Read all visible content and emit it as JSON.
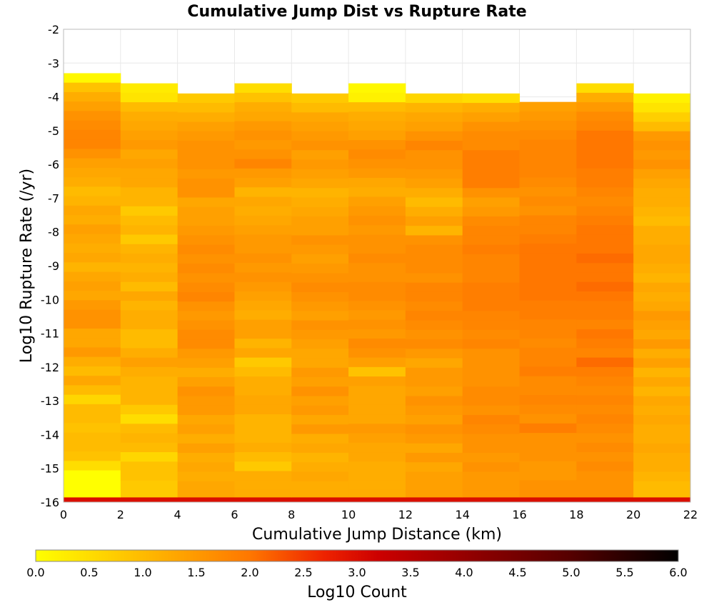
{
  "chart_data": {
    "type": "heatmap",
    "title": "Cumulative Jump Dist vs Rupture Rate",
    "xlabel": "Cumulative Jump Distance (km)",
    "ylabel": "Log10 Rupture Rate (/yr)",
    "xlim": [
      0,
      22
    ],
    "ylim": [
      -16,
      -2
    ],
    "x_ticks": [
      "0",
      "2",
      "4",
      "6",
      "8",
      "10",
      "12",
      "14",
      "16",
      "18",
      "20",
      "22"
    ],
    "y_ticks": [
      "-2",
      "-3",
      "-4",
      "-5",
      "-6",
      "-7",
      "-8",
      "-9",
      "-10",
      "-11",
      "-12",
      "-13",
      "-14",
      "-15",
      "-16"
    ],
    "x_bin_width": 2,
    "y_bin_height": 0.28,
    "columns": [
      {
        "x_start": 0,
        "y_top": -3.3,
        "bottom_row_value": 3.0,
        "values": [
          0.1,
          0.9,
          1.2,
          1.4,
          1.6,
          1.7,
          1.8,
          1.8,
          1.6,
          1.4,
          1.3,
          1.2,
          1.0,
          1.1,
          1.3,
          1.2,
          1.4,
          1.3,
          1.2,
          1.3,
          1.1,
          1.3,
          1.4,
          1.3,
          1.5,
          1.6,
          1.6,
          1.3,
          1.3,
          1.5,
          1.2,
          1.0,
          1.3,
          1.0,
          0.6,
          1.0,
          1.0,
          0.9,
          1.0,
          1.0,
          0.9,
          0.5,
          0.0
        ]
      },
      {
        "x_start": 2,
        "y_top": -3.6,
        "bottom_row_value": 3.0,
        "values": [
          0.3,
          0.4,
          1.0,
          1.2,
          1.3,
          1.4,
          1.5,
          1.3,
          1.4,
          1.3,
          1.3,
          1.1,
          1.1,
          0.8,
          1.0,
          1.1,
          0.8,
          1.1,
          1.2,
          1.1,
          1.2,
          1.0,
          1.3,
          1.1,
          1.2,
          1.2,
          1.0,
          1.0,
          1.2,
          1.4,
          1.2,
          1.1,
          1.1,
          1.1,
          0.8,
          0.5,
          1.0,
          1.1,
          1.0,
          0.6,
          0.9,
          0.9,
          0.8
        ]
      },
      {
        "x_start": 4,
        "y_top": -3.9,
        "bottom_row_value": 3.0,
        "values": [
          0.8,
          1.0,
          1.2,
          1.4,
          1.5,
          1.6,
          1.6,
          1.6,
          1.5,
          1.6,
          1.6,
          1.3,
          1.4,
          1.4,
          1.5,
          1.6,
          1.7,
          1.6,
          1.7,
          1.6,
          1.7,
          1.8,
          1.6,
          1.5,
          1.6,
          1.7,
          1.7,
          1.5,
          1.4,
          1.2,
          1.4,
          1.6,
          1.5,
          1.5,
          1.3,
          1.4,
          1.2,
          1.4,
          1.2,
          1.3,
          1.2,
          1.3
        ]
      },
      {
        "x_start": 6,
        "y_top": -3.6,
        "bottom_row_value": 3.0,
        "values": [
          0.5,
          0.9,
          1.2,
          1.3,
          1.5,
          1.6,
          1.5,
          1.6,
          1.8,
          1.5,
          1.4,
          1.1,
          1.3,
          1.2,
          1.3,
          1.4,
          1.5,
          1.5,
          1.6,
          1.5,
          1.6,
          1.5,
          1.4,
          1.3,
          1.2,
          1.4,
          1.4,
          1.1,
          1.3,
          0.8,
          1.0,
          1.2,
          1.2,
          1.3,
          1.3,
          1.1,
          1.1,
          1.1,
          1.2,
          1.0,
          0.8,
          1.2,
          1.2
        ]
      },
      {
        "x_start": 8,
        "y_top": -3.9,
        "bottom_row_value": 3.0,
        "values": [
          0.8,
          1.0,
          1.3,
          1.4,
          1.5,
          1.6,
          1.4,
          1.5,
          1.4,
          1.3,
          1.1,
          1.2,
          1.3,
          1.4,
          1.4,
          1.6,
          1.5,
          1.4,
          1.5,
          1.6,
          1.7,
          1.6,
          1.5,
          1.4,
          1.6,
          1.5,
          1.4,
          1.3,
          1.3,
          1.5,
          1.4,
          1.6,
          1.4,
          1.5,
          1.3,
          1.5,
          1.2,
          1.3,
          1.1,
          1.2,
          1.3,
          1.2
        ]
      },
      {
        "x_start": 10,
        "y_top": -3.6,
        "bottom_row_value": 3.0,
        "values": [
          0.1,
          0.2,
          1.0,
          1.2,
          1.3,
          1.4,
          1.6,
          1.7,
          1.6,
          1.5,
          1.3,
          1.2,
          1.4,
          1.5,
          1.6,
          1.5,
          1.6,
          1.6,
          1.7,
          1.6,
          1.6,
          1.7,
          1.7,
          1.6,
          1.5,
          1.6,
          1.5,
          1.7,
          1.6,
          1.4,
          0.9,
          1.4,
          1.3,
          1.3,
          1.3,
          1.3,
          1.5,
          1.4,
          1.3,
          1.3,
          1.2,
          1.2,
          1.2
        ]
      },
      {
        "x_start": 12,
        "y_top": -3.9,
        "bottom_row_value": 3.0,
        "values": [
          0.6,
          1.1,
          1.3,
          1.4,
          1.6,
          1.8,
          1.6,
          1.6,
          1.5,
          1.4,
          1.2,
          1.0,
          1.2,
          1.4,
          1.1,
          1.6,
          1.7,
          1.7,
          1.7,
          1.6,
          1.8,
          1.8,
          1.7,
          1.8,
          1.7,
          1.6,
          1.7,
          1.5,
          1.3,
          1.5,
          1.5,
          1.4,
          1.6,
          1.5,
          1.4,
          1.6,
          1.5,
          1.3,
          1.5,
          1.3,
          1.4,
          1.4
        ]
      },
      {
        "x_start": 14,
        "y_top": -3.9,
        "bottom_row_value": 3.0,
        "values": [
          0.5,
          1.2,
          1.4,
          1.6,
          1.7,
          1.7,
          1.9,
          1.9,
          1.9,
          1.9,
          1.6,
          1.4,
          1.5,
          1.7,
          1.8,
          1.8,
          1.9,
          1.8,
          1.8,
          1.8,
          1.9,
          1.9,
          1.9,
          1.8,
          1.8,
          1.7,
          1.8,
          1.6,
          1.6,
          1.6,
          1.6,
          1.7,
          1.7,
          1.6,
          1.8,
          1.7,
          1.6,
          1.6,
          1.5,
          1.6,
          1.5,
          1.5
        ]
      },
      {
        "x_start": 16,
        "y_top": -4.15,
        "bottom_row_value": 3.0,
        "values": [
          1.4,
          1.5,
          1.6,
          1.7,
          1.8,
          1.8,
          1.8,
          1.8,
          1.7,
          1.6,
          1.7,
          1.6,
          1.8,
          1.8,
          1.9,
          2.0,
          2.0,
          2.0,
          2.0,
          2.0,
          2.0,
          1.9,
          1.9,
          1.8,
          1.8,
          1.7,
          1.8,
          1.8,
          1.9,
          1.7,
          1.7,
          1.8,
          1.7,
          1.6,
          1.9,
          1.6,
          1.6,
          1.6,
          1.5,
          1.5,
          1.6
        ]
      },
      {
        "x_start": 18,
        "y_top": -3.6,
        "bottom_row_value": 3.0,
        "values": [
          0.5,
          1.2,
          1.5,
          1.7,
          1.8,
          2.0,
          2.0,
          2.0,
          2.0,
          1.9,
          1.9,
          1.8,
          1.7,
          1.8,
          1.9,
          2.0,
          2.0,
          2.0,
          2.1,
          2.0,
          2.0,
          2.1,
          2.0,
          1.9,
          1.9,
          1.8,
          2.0,
          1.9,
          1.8,
          2.1,
          1.9,
          1.8,
          1.7,
          1.8,
          1.7,
          1.8,
          1.7,
          1.6,
          1.7,
          1.6,
          1.7,
          1.6,
          1.6
        ]
      },
      {
        "x_start": 20,
        "y_top": -3.9,
        "bottom_row_value": 3.0,
        "values": [
          0.2,
          0.4,
          0.7,
          1.0,
          1.5,
          1.6,
          1.5,
          1.6,
          1.4,
          1.3,
          1.2,
          1.2,
          1.1,
          1.0,
          1.2,
          1.2,
          1.3,
          1.3,
          1.2,
          1.1,
          1.3,
          1.2,
          1.3,
          1.5,
          1.4,
          1.3,
          1.5,
          1.2,
          1.4,
          1.1,
          1.3,
          1.1,
          1.3,
          1.2,
          1.3,
          1.2,
          1.2,
          1.3,
          1.2,
          1.2,
          1.1,
          1.0
        ]
      }
    ],
    "colorbar": {
      "label": "Log10 Count",
      "range": [
        0,
        6
      ],
      "ticks": [
        "0.0",
        "0.5",
        "1.0",
        "1.5",
        "2.0",
        "2.5",
        "3.0",
        "3.5",
        "4.0",
        "4.5",
        "5.0",
        "5.5",
        "6.0"
      ],
      "stops": [
        {
          "v": 0.0,
          "color": "#ffff00"
        },
        {
          "v": 1.0,
          "color": "#ffbb00"
        },
        {
          "v": 2.0,
          "color": "#ff7700"
        },
        {
          "v": 2.7,
          "color": "#ee2200"
        },
        {
          "v": 3.2,
          "color": "#cc0000"
        },
        {
          "v": 4.2,
          "color": "#880000"
        },
        {
          "v": 5.0,
          "color": "#550000"
        },
        {
          "v": 6.0,
          "color": "#000000"
        }
      ]
    },
    "grid": true,
    "background": "#ffffff",
    "grid_color": "#e8e8e8"
  }
}
